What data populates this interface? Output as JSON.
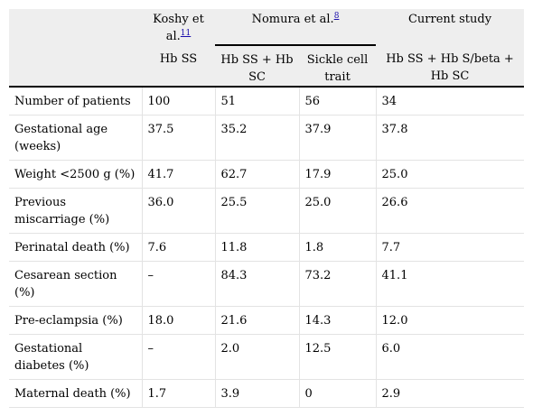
{
  "header": {
    "groups": [
      {
        "label": "Koshy et al.",
        "ref": "11"
      },
      {
        "label": "Nomura et al.",
        "ref": "8"
      },
      {
        "label": "Current study",
        "ref": ""
      }
    ],
    "subheaders": [
      "Hb SS",
      "Hb SS + Hb SC",
      "Sickle cell trait",
      "Hb SS + Hb S/beta + Hb SC"
    ]
  },
  "rows": [
    {
      "label": "Number of patients",
      "values": [
        "100",
        "51",
        "56",
        "34"
      ]
    },
    {
      "label": "Gestational age (weeks)",
      "values": [
        "37.5",
        "35.2",
        "37.9",
        "37.8"
      ]
    },
    {
      "label": "Weight <2500 g (%)",
      "values": [
        "41.7",
        "62.7",
        "17.9",
        "25.0"
      ]
    },
    {
      "label": "Previous miscarriage (%)",
      "values": [
        "36.0",
        "25.5",
        "25.0",
        "26.6"
      ]
    },
    {
      "label": "Perinatal death (%)",
      "values": [
        "7.6",
        "11.8",
        "1.8",
        "7.7"
      ]
    },
    {
      "label": "Cesarean section (%)",
      "values": [
        "–",
        "84.3",
        "73.2",
        "41.1"
      ]
    },
    {
      "label": "Pre-eclampsia (%)",
      "values": [
        "18.0",
        "21.6",
        "14.3",
        "12.0"
      ]
    },
    {
      "label": "Gestational diabetes (%)",
      "values": [
        "–",
        "2.0",
        "12.5",
        "6.0"
      ]
    },
    {
      "label": "Maternal death (%)",
      "values": [
        "1.7",
        "3.9",
        "0",
        "2.9"
      ]
    }
  ]
}
